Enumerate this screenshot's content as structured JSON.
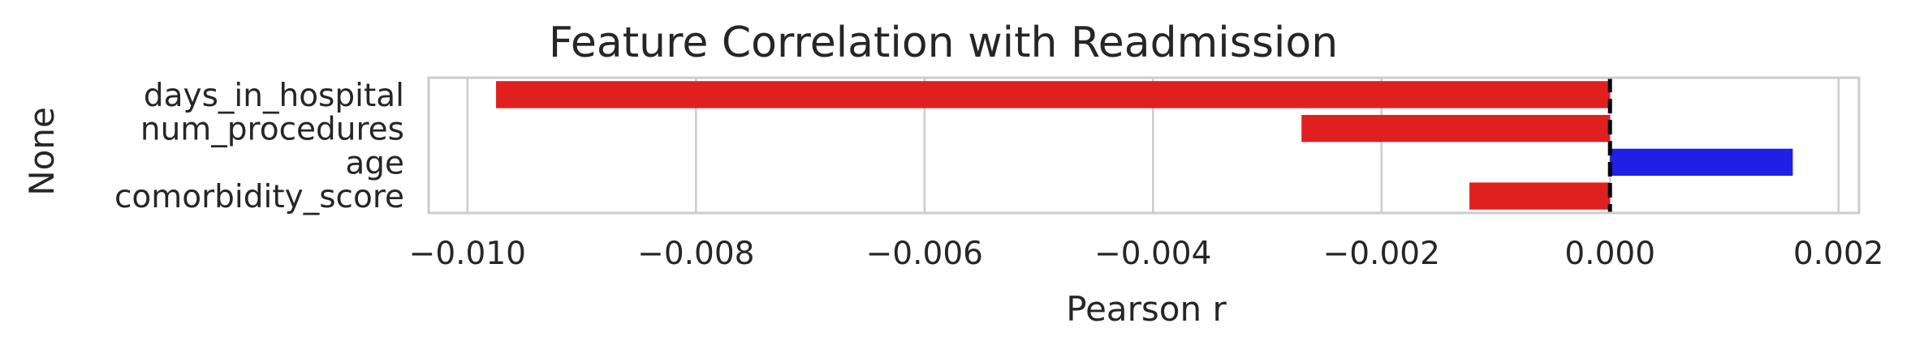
{
  "chart_data": {
    "type": "bar",
    "orientation": "horizontal",
    "title": "Feature Correlation with Readmission",
    "xlabel": "Pearson r",
    "ylabel": "None",
    "categories": [
      "days_in_hospital",
      "num_procedures",
      "age",
      "comorbidity_score"
    ],
    "values": [
      -0.00975,
      -0.0027,
      0.0016,
      -0.00123
    ],
    "xlim": [
      -0.01034,
      0.00218
    ],
    "xticks": [
      -0.01,
      -0.008,
      -0.006,
      -0.004,
      -0.002,
      0.0,
      0.002
    ],
    "xtick_labels": [
      "−0.010",
      "−0.008",
      "−0.006",
      "−0.004",
      "−0.002",
      "0.000",
      "0.002"
    ],
    "reference_line": 0,
    "grid": "vertical",
    "colors": {
      "positive": "#1f1fe6",
      "negative": "#e01f1f",
      "reference_line": "#000000",
      "grid": "#cccccc",
      "frame": "#cccccc"
    }
  }
}
